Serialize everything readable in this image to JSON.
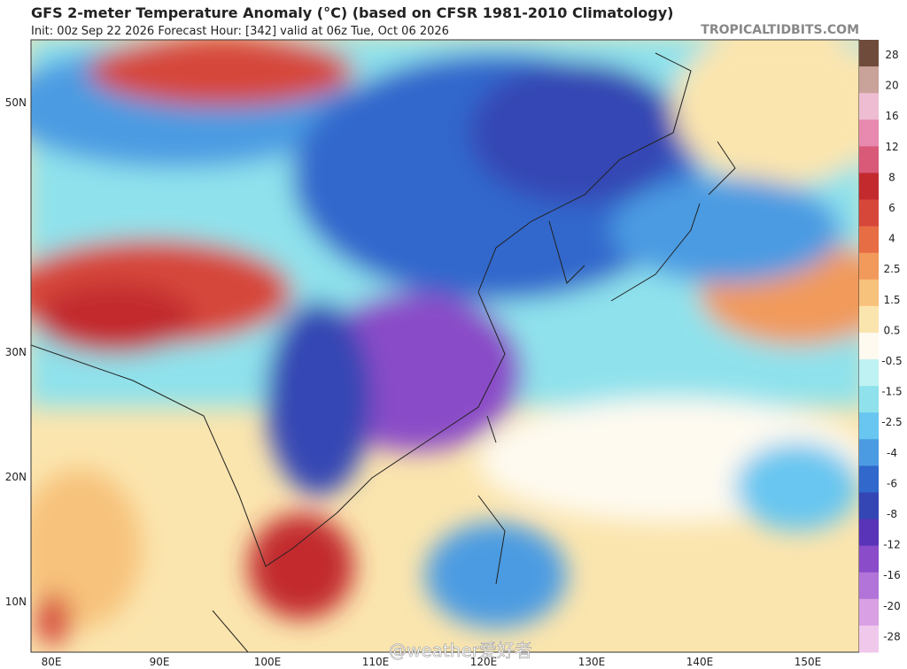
{
  "header": {
    "title": "GFS 2-meter Temperature Anomaly (°C) (based on CFSR 1981-2010 Climatology)",
    "subtitle": "Init: 00z Sep 22 2026   Forecast Hour: [342]   valid at 06z Tue, Oct 06 2026",
    "source": "TROPICALTIDBITS.COM"
  },
  "map": {
    "lat_labels": [
      "50N",
      "30N",
      "20N",
      "10N"
    ],
    "lon_labels": [
      "80E",
      "90E",
      "100E",
      "110E",
      "120E",
      "130E",
      "140E",
      "150E"
    ]
  },
  "colorbar": {
    "labels": [
      28,
      20,
      16,
      12,
      8,
      6,
      4,
      2.5,
      1.5,
      0.5,
      -0.5,
      -1.5,
      -2.5,
      -4,
      -6,
      -8,
      -12,
      -16,
      -20,
      -28
    ],
    "colors": [
      "#6e4b3a",
      "#c9a29a",
      "#eebdd2",
      "#e889b0",
      "#d85a78",
      "#c22a2e",
      "#d6473a",
      "#e76d45",
      "#f19a5c",
      "#f7c27c",
      "#fbe5ae",
      "#fefaf0",
      "#bff2f2",
      "#8fe2ec",
      "#68c6f0",
      "#4b9be2",
      "#3068cc",
      "#3446b4",
      "#5a34b8",
      "#8a4cc8",
      "#b274d8",
      "#d9a0e4",
      "#f0c8ec"
    ]
  },
  "watermark": "@weather爱好者"
}
